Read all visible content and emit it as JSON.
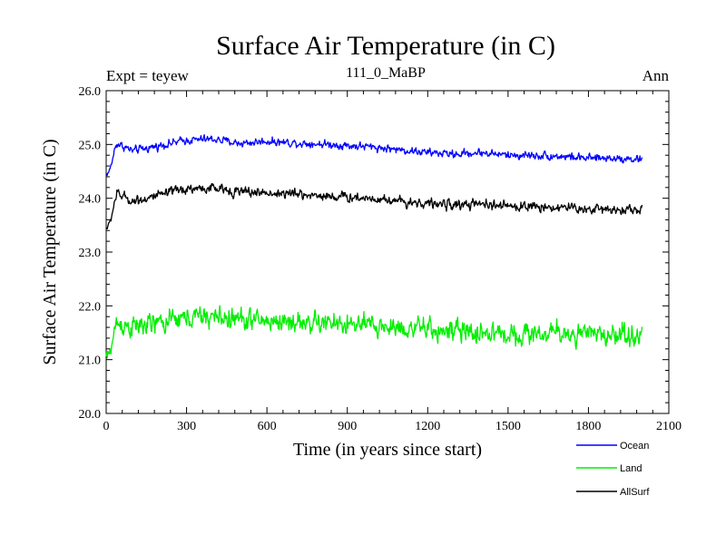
{
  "chart_data": {
    "type": "line",
    "title": "Surface Air Temperature (in C)",
    "subtitle": "111_0_MaBP",
    "left_note": "Expt = teyew",
    "right_note": "Ann",
    "xlabel": "Time (in years since start)",
    "ylabel": "Surface Air Temperature (in C)",
    "xlim": [
      0,
      2100
    ],
    "ylim": [
      20.0,
      26.0
    ],
    "xticks": [
      0,
      300,
      600,
      900,
      1200,
      1500,
      1800,
      2100
    ],
    "yticks": [
      20.0,
      21.0,
      22.0,
      23.0,
      24.0,
      25.0,
      26.0
    ],
    "xtick_labels": [
      "0",
      "300",
      "600",
      "900",
      "1200",
      "1500",
      "1800",
      "2100"
    ],
    "ytick_labels": [
      "20.0",
      "21.0",
      "22.0",
      "23.0",
      "24.0",
      "25.0",
      "26.0"
    ],
    "series": [
      {
        "name": "Ocean",
        "color": "#0000ff",
        "noise": 0.045,
        "start": 24.45,
        "x": [
          0,
          40,
          100,
          200,
          300,
          400,
          500,
          600,
          700,
          800,
          900,
          1000,
          1100,
          1200,
          1300,
          1400,
          1500,
          1600,
          1700,
          1800,
          1900,
          2000
        ],
        "y": [
          24.45,
          25.02,
          24.88,
          24.98,
          25.08,
          25.1,
          25.02,
          25.06,
          25.03,
          25.01,
          24.98,
          24.95,
          24.9,
          24.85,
          24.82,
          24.85,
          24.8,
          24.8,
          24.78,
          24.74,
          24.75,
          24.72
        ]
      },
      {
        "name": "Land",
        "color": "#00ee00",
        "noise": 0.12,
        "start": 21.05,
        "x": [
          0,
          40,
          100,
          200,
          300,
          400,
          500,
          600,
          700,
          800,
          900,
          1000,
          1100,
          1200,
          1300,
          1400,
          1500,
          1600,
          1700,
          1800,
          1900,
          2000
        ],
        "y": [
          21.05,
          21.68,
          21.6,
          21.68,
          21.78,
          21.8,
          21.75,
          21.72,
          21.7,
          21.68,
          21.65,
          21.62,
          21.6,
          21.56,
          21.52,
          21.5,
          21.48,
          21.48,
          21.5,
          21.45,
          21.48,
          21.45
        ]
      },
      {
        "name": "AllSurf",
        "color": "#000000",
        "noise": 0.055,
        "start": 23.45,
        "x": [
          0,
          40,
          100,
          200,
          300,
          400,
          500,
          600,
          700,
          800,
          900,
          1000,
          1100,
          1200,
          1300,
          1400,
          1500,
          1600,
          1700,
          1800,
          1900,
          2000
        ],
        "y": [
          23.45,
          24.08,
          23.95,
          24.05,
          24.18,
          24.18,
          24.12,
          24.1,
          24.08,
          24.05,
          24.02,
          24.0,
          23.95,
          23.9,
          23.88,
          23.88,
          23.85,
          23.85,
          23.83,
          23.8,
          23.8,
          23.78
        ]
      }
    ],
    "legend_position": "bottom-right"
  }
}
